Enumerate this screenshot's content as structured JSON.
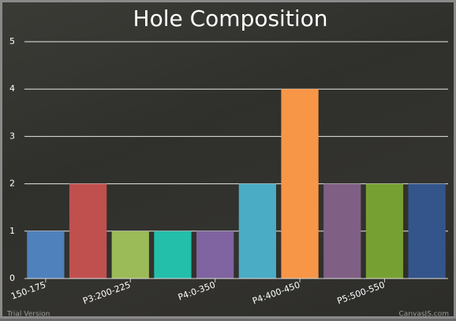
{
  "chart_data": {
    "type": "bar",
    "title": "Hole Composition",
    "categories": [
      "150-175",
      null,
      "P3:200-225",
      null,
      "P4:0-350",
      null,
      "P4:400-450",
      null,
      "P5:500-550",
      null
    ],
    "values": [
      1,
      2,
      1,
      1,
      1,
      2,
      4,
      2,
      2,
      2
    ],
    "colors": [
      "#4f81bc",
      "#c0504e",
      "#9bbb58",
      "#23bfaa",
      "#8064a1",
      "#4aacc5",
      "#f79647",
      "#7f6084",
      "#77a033",
      "#33558b"
    ],
    "ylim": [
      0,
      5
    ],
    "yticks": [
      0,
      1,
      2,
      3,
      4,
      5
    ],
    "grid": true,
    "watermarks": [
      "Trial Version",
      "CanvasJS.com"
    ]
  }
}
